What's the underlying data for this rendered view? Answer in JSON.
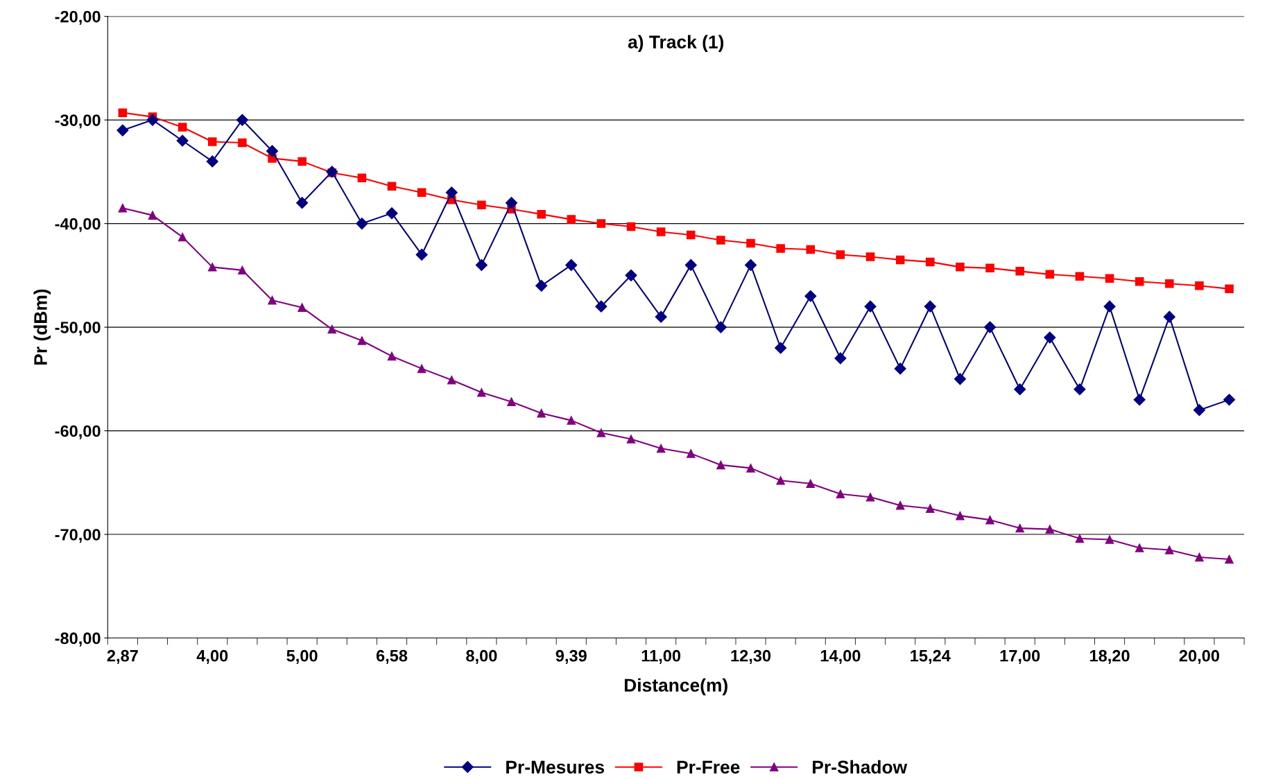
{
  "chart_data": {
    "type": "line",
    "title": "a) Track (1)",
    "xlabel": "Distance(m)",
    "ylabel": "Pr (dBm)",
    "categories": [
      "2,87",
      null,
      null,
      "4,00",
      null,
      null,
      "5,00",
      null,
      null,
      "6,58",
      null,
      null,
      "8,00",
      null,
      null,
      "9,39",
      null,
      null,
      "11,00",
      null,
      null,
      "12,30",
      null,
      null,
      "14,00",
      null,
      null,
      "15,24",
      null,
      null,
      "17,00",
      null,
      null,
      "18,20",
      null,
      null,
      "20,00",
      null
    ],
    "series": [
      {
        "name": "Pr-Mesures",
        "color": "#000080",
        "marker": "diamond",
        "values": [
          -31,
          -30,
          -32,
          -34,
          -30,
          -33,
          -38,
          -35,
          -40,
          -39,
          -43,
          -37,
          -44,
          -38,
          -46,
          -44,
          -48,
          -45,
          -49,
          -44,
          -50,
          -44,
          -52,
          -47,
          -53,
          -48,
          -54,
          -48,
          -55,
          -50,
          -56,
          -51,
          -56,
          -48,
          -57,
          -49,
          -58,
          -57
        ]
      },
      {
        "name": "Pr-Free",
        "color": "#ff0000",
        "marker": "square",
        "values": [
          -29.3,
          -29.7,
          -30.7,
          -32.1,
          -32.2,
          -33.7,
          -34.0,
          -35.1,
          -35.6,
          -36.4,
          -37.0,
          -37.7,
          -38.2,
          -38.6,
          -39.1,
          -39.6,
          -40.0,
          -40.3,
          -40.8,
          -41.1,
          -41.6,
          -41.9,
          -42.4,
          -42.5,
          -43.0,
          -43.2,
          -43.5,
          -43.7,
          -44.2,
          -44.3,
          -44.6,
          -44.9,
          -45.1,
          -45.3,
          -45.6,
          -45.8,
          -46.0,
          -46.3
        ]
      },
      {
        "name": "Pr-Shadow",
        "color": "#800080",
        "marker": "triangle",
        "values": [
          -38.5,
          -39.2,
          -41.3,
          -44.2,
          -44.5,
          -47.4,
          -48.1,
          -50.2,
          -51.3,
          -52.8,
          -54.0,
          -55.1,
          -56.3,
          -57.2,
          -58.3,
          -59.0,
          -60.2,
          -60.8,
          -61.7,
          -62.2,
          -63.3,
          -63.6,
          -64.8,
          -65.1,
          -66.1,
          -66.4,
          -67.2,
          -67.5,
          -68.2,
          -68.6,
          -69.4,
          -69.5,
          -70.4,
          -70.5,
          -71.3,
          -71.5,
          -72.2,
          -72.4
        ]
      }
    ],
    "ylim": [
      -80,
      -20
    ],
    "yticks": [
      {
        "value": -80,
        "label": "-80,00"
      },
      {
        "value": -70,
        "label": "-70,00"
      },
      {
        "value": -60,
        "label": "-60,00"
      },
      {
        "value": -50,
        "label": "-50,00"
      },
      {
        "value": -40,
        "label": "-40,00"
      },
      {
        "value": -30,
        "label": "-30,00"
      },
      {
        "value": -20,
        "label": "-20,00"
      }
    ],
    "grid": "y",
    "legend": "bottom",
    "line_style": "solid"
  }
}
